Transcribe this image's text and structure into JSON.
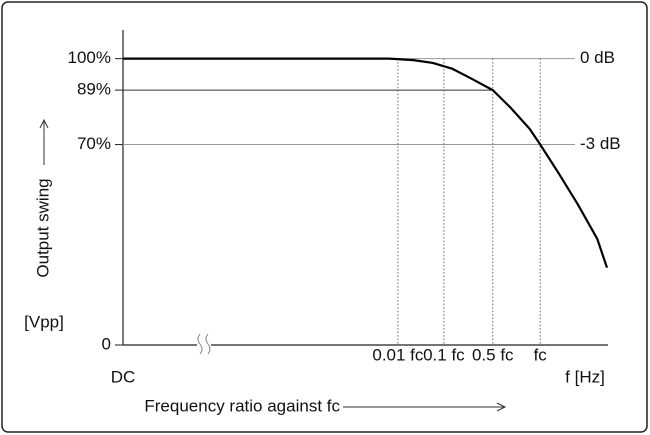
{
  "chart_data": {
    "type": "line",
    "y_label": "Output swing",
    "y_unit": "[Vpp]",
    "x_label": "Frequency ratio against fc",
    "x_unit": "f [Hz]",
    "x": [
      0,
      55,
      60,
      64,
      68,
      72,
      76.4,
      80,
      84,
      86.2,
      90,
      94,
      98,
      100
    ],
    "series": [
      {
        "color": "#000000",
        "values": [
          100,
          100,
          99.5,
          98.5,
          96.5,
          93,
          89,
          83,
          75.5,
          70,
          60,
          49,
          37,
          27
        ]
      }
    ],
    "xlim": [
      0,
      100
    ],
    "ylim": [
      0,
      110
    ],
    "xticks": [
      {
        "value": 0,
        "label": "DC"
      },
      {
        "value": 56.8,
        "label": "0.01 fc"
      },
      {
        "value": 66.3,
        "label": "0.1 fc"
      },
      {
        "value": 76.4,
        "label": "0.5 fc"
      },
      {
        "value": 86.2,
        "label": "fc"
      }
    ],
    "yticks": [
      0,
      {
        "value": 70,
        "label": "70%"
      },
      {
        "value": 89,
        "label": "89%"
      },
      {
        "value": 100,
        "label": "100%"
      }
    ],
    "annotations": [
      {
        "value": 100,
        "label": "0 dB"
      },
      {
        "value": 70,
        "label": "-3 dB"
      }
    ]
  }
}
